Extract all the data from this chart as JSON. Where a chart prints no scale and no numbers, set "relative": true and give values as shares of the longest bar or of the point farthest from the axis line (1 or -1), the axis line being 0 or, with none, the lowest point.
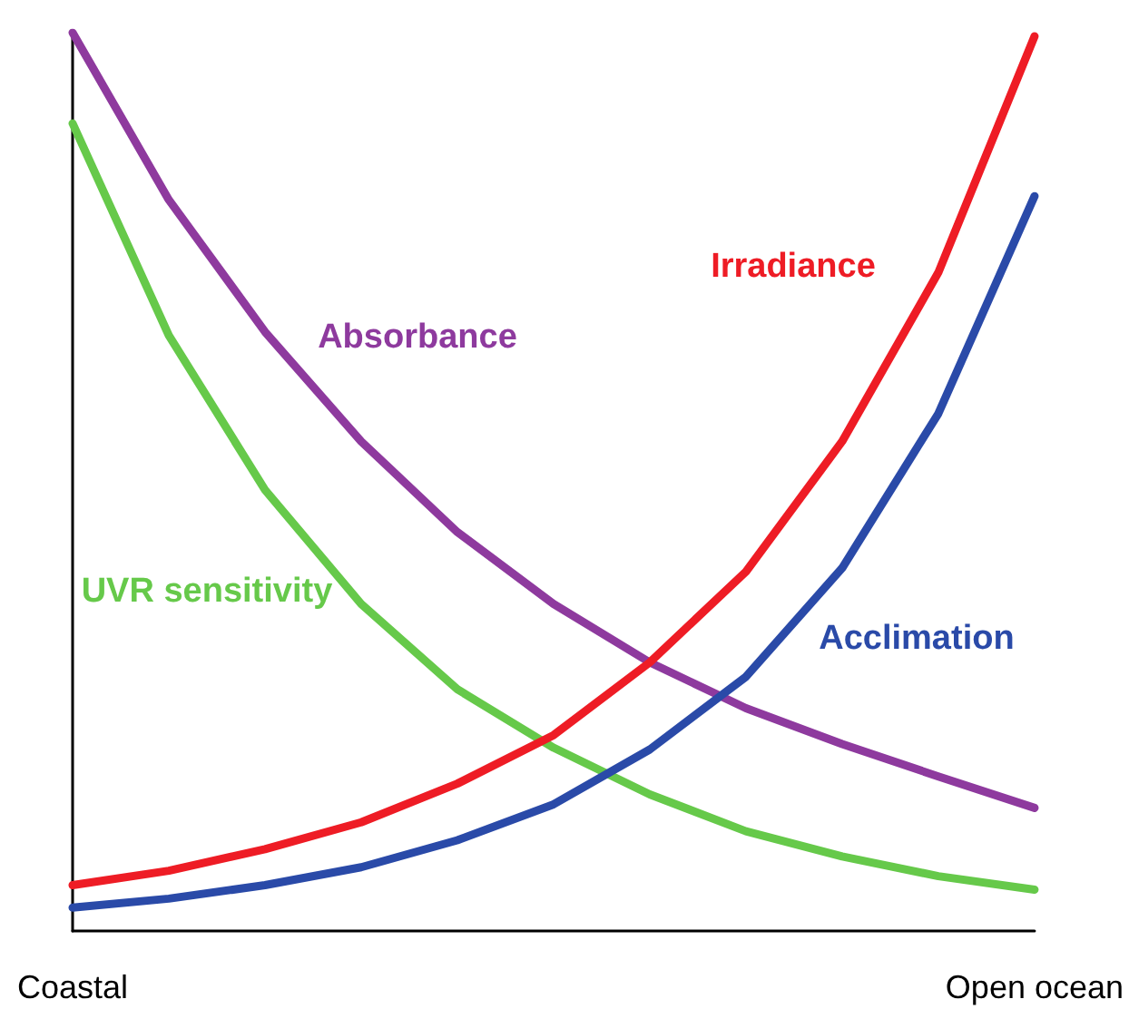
{
  "chart_data": {
    "type": "line",
    "relative": true,
    "categories": [
      "Coastal",
      null,
      null,
      null,
      null,
      null,
      null,
      null,
      null,
      null,
      "Open ocean"
    ],
    "series": [
      {
        "name": "Absorbance",
        "color": "#8e3a9e",
        "values": [
          1,
          0.814,
          0.667,
          0.545,
          0.444,
          0.364,
          0.299,
          0.248,
          0.208,
          0.172,
          0.137
        ]
      },
      {
        "name": "UVR sensitivity",
        "color": "#66c94a",
        "values": [
          0.899,
          0.663,
          0.491,
          0.364,
          0.269,
          0.204,
          0.152,
          0.111,
          0.083,
          0.061,
          0.046
        ]
      },
      {
        "name": "Irradiance",
        "color": "#ee1c25",
        "values": [
          0.051,
          0.067,
          0.091,
          0.121,
          0.164,
          0.218,
          0.299,
          0.4,
          0.545,
          0.733,
          0.996
        ]
      },
      {
        "name": "Acclimation",
        "color": "#2a4aa8",
        "values": [
          0.026,
          0.036,
          0.051,
          0.071,
          0.101,
          0.141,
          0.202,
          0.283,
          0.404,
          0.576,
          0.818
        ]
      }
    ],
    "grid": false,
    "legend": false,
    "marker": "none",
    "line_style": "solid"
  }
}
